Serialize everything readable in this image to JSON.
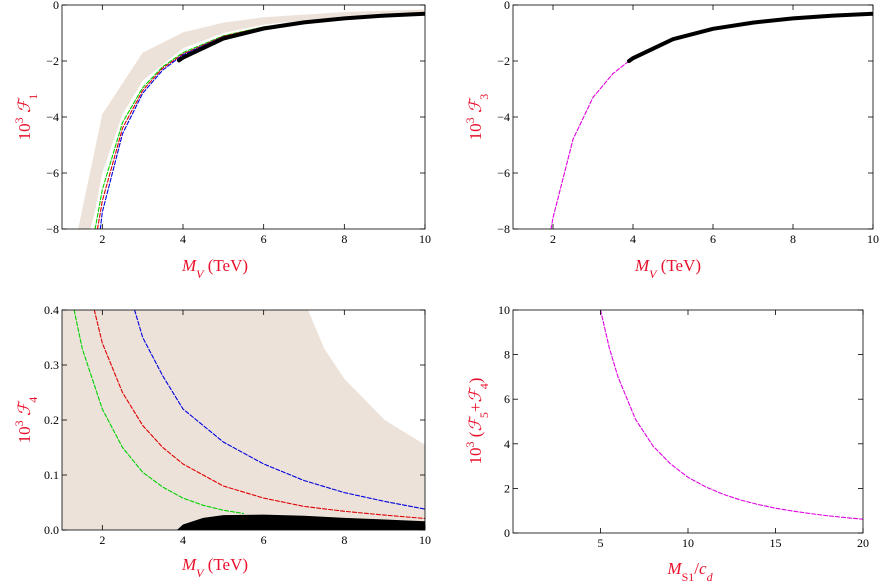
{
  "chart_data": [
    {
      "type": "line",
      "xlabel": "M_V (TeV)",
      "ylabel": "10^3 F_1",
      "xlim": [
        1,
        10
      ],
      "ylim": [
        -8,
        0
      ],
      "xticks": [
        "2",
        "4",
        "6",
        "8",
        "10"
      ],
      "yticks": [
        "0",
        "−2",
        "−4",
        "−6",
        "−8"
      ],
      "band": {
        "color": "#ece2da",
        "lower": [
          [
            1.4,
            -8
          ],
          [
            2,
            -3.9
          ],
          [
            3,
            -1.7
          ],
          [
            4,
            -0.98
          ],
          [
            5,
            -0.63
          ],
          [
            6,
            -0.44
          ],
          [
            8,
            -0.25
          ],
          [
            10,
            -0.16
          ]
        ],
        "upper": [
          [
            1.7,
            -8
          ],
          [
            1.8,
            -7.5
          ],
          [
            2,
            -6.0
          ],
          [
            2.5,
            -3.9
          ],
          [
            3,
            -2.7
          ],
          [
            4,
            -1.55
          ],
          [
            5,
            -1.0
          ],
          [
            6,
            -0.7
          ],
          [
            8,
            -0.4
          ],
          [
            10,
            -0.26
          ]
        ]
      },
      "series": [
        {
          "color": "#00d000",
          "dashed": true,
          "points": [
            [
              1.82,
              -8
            ],
            [
              2,
              -6.6
            ],
            [
              2.5,
              -4.2
            ],
            [
              3,
              -2.95
            ],
            [
              3.5,
              -2.2
            ],
            [
              4,
              -1.7
            ],
            [
              5,
              -1.1
            ],
            [
              6,
              -0.78
            ],
            [
              8,
              -0.45
            ],
            [
              10,
              -0.29
            ]
          ]
        },
        {
          "color": "#e00000",
          "dashed": true,
          "points": [
            [
              1.88,
              -8
            ],
            [
              2,
              -7.0
            ],
            [
              2.5,
              -4.4
            ],
            [
              3,
              -3.05
            ],
            [
              3.5,
              -2.25
            ],
            [
              4,
              -1.75
            ],
            [
              5,
              -1.12
            ],
            [
              6,
              -0.79
            ],
            [
              8,
              -0.45
            ],
            [
              10,
              -0.29
            ]
          ]
        },
        {
          "color": "#0000e0",
          "dashed": true,
          "points": [
            [
              1.95,
              -8
            ],
            [
              2,
              -7.4
            ],
            [
              2.5,
              -4.6
            ],
            [
              3,
              -3.15
            ],
            [
              3.5,
              -2.32
            ],
            [
              4,
              -1.78
            ],
            [
              5,
              -1.14
            ],
            [
              6,
              -0.8
            ],
            [
              8,
              -0.45
            ],
            [
              10,
              -0.29
            ]
          ]
        },
        {
          "color": "#000000",
          "dashed": false,
          "thick": true,
          "points": [
            [
              3.9,
              -1.98
            ],
            [
              4,
              -1.88
            ],
            [
              5,
              -1.2
            ],
            [
              6,
              -0.84
            ],
            [
              7,
              -0.62
            ],
            [
              8,
              -0.48
            ],
            [
              9,
              -0.38
            ],
            [
              10,
              -0.31
            ]
          ]
        }
      ]
    },
    {
      "type": "line",
      "xlabel": "M_V (TeV)",
      "ylabel": "10^3 F_3",
      "xlim": [
        1,
        10
      ],
      "ylim": [
        -8,
        0
      ],
      "xticks": [
        "2",
        "4",
        "6",
        "8",
        "10"
      ],
      "yticks": [
        "0",
        "−2",
        "−4",
        "−6",
        "−8"
      ],
      "series": [
        {
          "color": "#e000e0",
          "dashed": true,
          "points": [
            [
              1.95,
              -8
            ],
            [
              2,
              -7.6
            ],
            [
              2.5,
              -4.8
            ],
            [
              3,
              -3.3
            ],
            [
              3.5,
              -2.45
            ],
            [
              3.9,
              -2.0
            ]
          ]
        },
        {
          "color": "#000000",
          "dashed": false,
          "thick": true,
          "points": [
            [
              3.9,
              -2.0
            ],
            [
              4,
              -1.9
            ],
            [
              5,
              -1.22
            ],
            [
              6,
              -0.85
            ],
            [
              7,
              -0.63
            ],
            [
              8,
              -0.48
            ],
            [
              9,
              -0.38
            ],
            [
              10,
              -0.31
            ]
          ]
        }
      ]
    },
    {
      "type": "line",
      "xlabel": "M_V (TeV)",
      "ylabel": "10^3 F_4",
      "xlim": [
        1,
        10
      ],
      "ylim": [
        0,
        0.4
      ],
      "xticks": [
        "2",
        "4",
        "6",
        "8",
        "10"
      ],
      "yticks": [
        "0.0",
        "0.1",
        "0.2",
        "0.3",
        "0.4"
      ],
      "band": {
        "color": "#ece2da",
        "lower": [
          [
            1,
            0
          ],
          [
            10,
            0
          ]
        ],
        "upper": [
          [
            1,
            0.4
          ],
          [
            7.1,
            0.4
          ],
          [
            7.5,
            0.33
          ],
          [
            8,
            0.275
          ],
          [
            9,
            0.2
          ],
          [
            10,
            0.155
          ]
        ]
      },
      "series": [
        {
          "color": "#00d000",
          "dashed": true,
          "points": [
            [
              1.3,
              0.4
            ],
            [
              1.5,
              0.33
            ],
            [
              2,
              0.22
            ],
            [
              2.5,
              0.15
            ],
            [
              3,
              0.105
            ],
            [
              3.5,
              0.078
            ],
            [
              4,
              0.058
            ],
            [
              4.5,
              0.045
            ],
            [
              5,
              0.036
            ],
            [
              5.5,
              0.03
            ]
          ]
        },
        {
          "color": "#e00000",
          "dashed": true,
          "points": [
            [
              1.8,
              0.4
            ],
            [
              2,
              0.34
            ],
            [
              2.5,
              0.25
            ],
            [
              3,
              0.19
            ],
            [
              3.5,
              0.15
            ],
            [
              4,
              0.12
            ],
            [
              5,
              0.08
            ],
            [
              6,
              0.058
            ],
            [
              7,
              0.043
            ],
            [
              8,
              0.034
            ],
            [
              9,
              0.027
            ],
            [
              10,
              0.021
            ]
          ]
        },
        {
          "color": "#0000e0",
          "dashed": true,
          "points": [
            [
              2.8,
              0.4
            ],
            [
              3,
              0.35
            ],
            [
              3.5,
              0.28
            ],
            [
              4,
              0.22
            ],
            [
              5,
              0.16
            ],
            [
              6,
              0.12
            ],
            [
              7,
              0.09
            ],
            [
              8,
              0.068
            ],
            [
              9,
              0.052
            ],
            [
              10,
              0.038
            ]
          ]
        }
      ],
      "black_region": {
        "color": "#000000",
        "upper": [
          [
            3.85,
            0
          ],
          [
            4,
            0.01
          ],
          [
            4.5,
            0.022
          ],
          [
            5,
            0.027
          ],
          [
            6,
            0.028
          ],
          [
            7,
            0.026
          ],
          [
            8,
            0.022
          ],
          [
            9,
            0.019
          ],
          [
            10,
            0.016
          ]
        ]
      }
    },
    {
      "type": "line",
      "xlabel": "M_S1/c_d",
      "ylabel": "10^3 (F_5+F_4)",
      "xlim": [
        0,
        20
      ],
      "ylim": [
        0,
        10
      ],
      "xticks": [
        "5",
        "10",
        "15",
        "20"
      ],
      "yticks": [
        "0",
        "2",
        "4",
        "6",
        "8",
        "10"
      ],
      "series": [
        {
          "color": "#e000e0",
          "dashed": true,
          "points": [
            [
              5,
              10
            ],
            [
              5.5,
              8.3
            ],
            [
              6,
              7.0
            ],
            [
              7,
              5.1
            ],
            [
              8,
              3.9
            ],
            [
              9,
              3.1
            ],
            [
              10,
              2.5
            ],
            [
              11,
              2.07
            ],
            [
              12,
              1.74
            ],
            [
              13,
              1.48
            ],
            [
              14,
              1.28
            ],
            [
              15,
              1.11
            ],
            [
              16,
              0.98
            ],
            [
              17,
              0.87
            ],
            [
              18,
              0.77
            ],
            [
              19,
              0.69
            ],
            [
              20,
              0.62
            ]
          ]
        }
      ]
    }
  ]
}
